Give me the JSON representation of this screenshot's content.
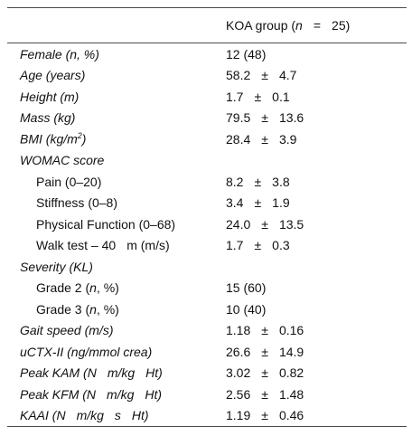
{
  "header": {
    "col1": "",
    "group_prefix": "KOA group (",
    "group_n": "n",
    "group_eq": "=",
    "group_count": "25)"
  },
  "rows": [
    {
      "label": "Female (n, %)",
      "value": "12 (48)"
    },
    {
      "label": "Age (years)",
      "mean": "58.2",
      "pm": "±",
      "sd": "4.7"
    },
    {
      "label": "Height (m)",
      "mean": "1.7",
      "pm": "±",
      "sd": "0.1"
    },
    {
      "label": "Mass (kg)",
      "mean": "79.5",
      "pm": "±",
      "sd": "13.6"
    },
    {
      "label_pre": "BMI (kg/m",
      "label_sup": "2",
      "label_post": ")",
      "mean": "28.4",
      "pm": "±",
      "sd": "3.9"
    },
    {
      "label": "WOMAC score"
    },
    {
      "label": "Pain (0–20)",
      "mean": "8.2",
      "pm": "±",
      "sd": "3.8"
    },
    {
      "label": "Stiffness (0–8)",
      "mean": "3.4",
      "pm": "±",
      "sd": "1.9"
    },
    {
      "label": "Physical Function (0–68)",
      "mean": "24.0",
      "pm": "±",
      "sd": "13.5"
    },
    {
      "label_a": "Walk test – 40",
      "label_b": "m (m/s)",
      "mean": "1.7",
      "pm": "±",
      "sd": "0.3"
    },
    {
      "label": "Severity (KL)"
    },
    {
      "label_a": "Grade 2 (",
      "label_n": "n",
      "label_b": ", %)",
      "value": "15 (60)"
    },
    {
      "label_a": "Grade 3 (",
      "label_n": "n",
      "label_b": ", %)",
      "value": "10 (40)"
    },
    {
      "label": "Gait speed (m/s)",
      "mean": "1.18",
      "pm": "±",
      "sd": "0.16"
    },
    {
      "label": "uCTX-II (ng/mmol crea)",
      "mean": "26.6",
      "pm": "±",
      "sd": "14.9"
    },
    {
      "label_a": "Peak KAM (N",
      "label_b": "m/kg",
      "label_c": "Ht)",
      "mean": "3.02",
      "pm": "±",
      "sd": "0.82"
    },
    {
      "label_a": "Peak KFM (N",
      "label_b": "m/kg",
      "label_c": "Ht)",
      "mean": "2.56",
      "pm": "±",
      "sd": "1.48"
    },
    {
      "label_a": "KAAI (N",
      "label_b": "m/kg",
      "label_c": "s",
      "label_d": "Ht)",
      "mean": "1.19",
      "pm": "±",
      "sd": "0.46"
    }
  ]
}
